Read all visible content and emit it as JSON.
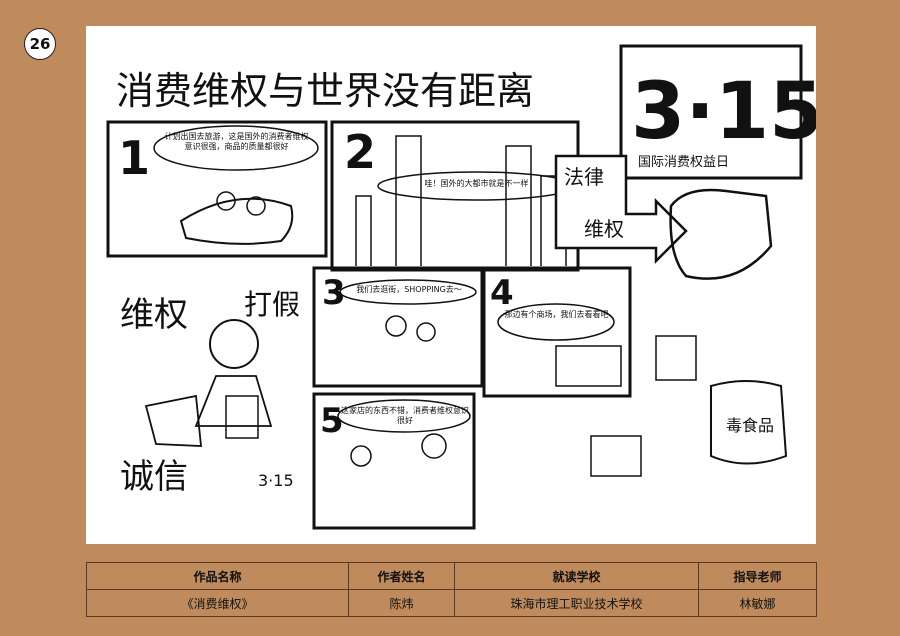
{
  "page_number": "26",
  "artwork": {
    "title": "消费维权与世界没有距离",
    "big_number": "3·15",
    "subtitle": "国际消费权益日",
    "law_arrow_text_top": "法律",
    "law_arrow_text": "维权",
    "side_words": [
      "维权",
      "打假",
      "诚信"
    ],
    "small_number": "3·15",
    "bag_label": "毒食品",
    "panels": [
      {
        "number": "1",
        "bubble": "计划出国去旅游，这是国外的消费者维权意识很强，商品的质量都很好"
      },
      {
        "number": "2",
        "bubble": "哇！国外的大都市就是不一样"
      },
      {
        "number": "3",
        "bubble": "我们去逛街，SHOPPING去～"
      },
      {
        "number": "4",
        "bubble": "那边有个商场，我们去看看吧"
      },
      {
        "number": "5",
        "bubble": "这家店的东西不错，消费者维权意识很好"
      }
    ]
  },
  "caption": {
    "headers": [
      "作品名称",
      "作者姓名",
      "就读学校",
      "指导老师"
    ],
    "values": [
      "《消费维权》",
      "陈炜",
      "珠海市理工职业技术学校",
      "林敏娜"
    ]
  }
}
